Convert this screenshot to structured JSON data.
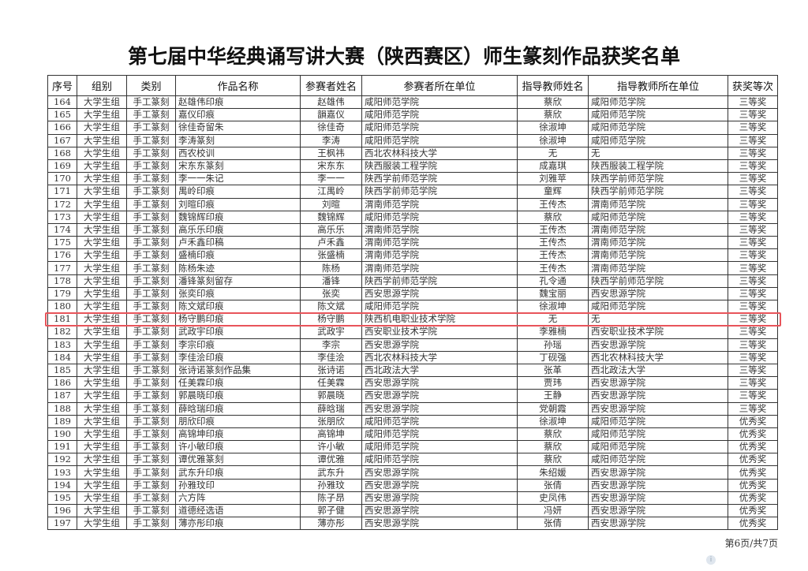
{
  "title": "第七届中华经典诵写讲大赛（陕西赛区）师生篆刻作品获奖名单",
  "columns": [
    "序号",
    "组别",
    "类别",
    "作品名称",
    "参赛者姓名",
    "参赛者所在单位",
    "指导教师姓名",
    "指导教师所在单位",
    "获奖等次"
  ],
  "rows": [
    [
      "164",
      "大学生组",
      "手工篆刻",
      "赵雄伟印痕",
      "赵雄伟",
      "咸阳师范学院",
      "蔡欣",
      "咸阳师范学院",
      "三等奖"
    ],
    [
      "165",
      "大学生组",
      "手工篆刻",
      "嘉仪印痕",
      "韻嘉仪",
      "咸阳师范学院",
      "蔡欣",
      "咸阳师范学院",
      "三等奖"
    ],
    [
      "166",
      "大学生组",
      "手工篆刻",
      "徐佳奇留朱",
      "徐佳奇",
      "咸阳师范学院",
      "徐淑坤",
      "咸阳师范学院",
      "三等奖"
    ],
    [
      "167",
      "大学生组",
      "手工篆刻",
      "李涛篆刻",
      "李涛",
      "咸阳师范学院",
      "徐淑坤",
      "咸阳师范学院",
      "三等奖"
    ],
    [
      "168",
      "大学生组",
      "手工篆刻",
      "西农校训",
      "王枫祎",
      "西北农林科技大学",
      "无",
      "无",
      "三等奖"
    ],
    [
      "169",
      "大学生组",
      "手工篆刻",
      "宋东东篆刻",
      "宋东东",
      "陕西服装工程学院",
      "成嘉琪",
      "陕西服装工程学院",
      "三等奖"
    ],
    [
      "170",
      "大学生组",
      "手工篆刻",
      "李一一朱记",
      "李一一",
      "陕西学前师范学院",
      "刘雅苹",
      "陕西学前师范学院",
      "三等奖"
    ],
    [
      "171",
      "大学生组",
      "手工篆刻",
      "禺岭印痕",
      "江禺岭",
      "陕西学前师范学院",
      "童辉",
      "陕西学前师范学院",
      "三等奖"
    ],
    [
      "172",
      "大学生组",
      "手工篆刻",
      "刘暄印痕",
      "刘暄",
      "渭南师范学院",
      "王传杰",
      "渭南师范学院",
      "三等奖"
    ],
    [
      "173",
      "大学生组",
      "手工篆刻",
      "魏锦辉印痕",
      "魏锦辉",
      "咸阳师范学院",
      "蔡欣",
      "咸阳师范学院",
      "三等奖"
    ],
    [
      "174",
      "大学生组",
      "手工篆刻",
      "高乐乐印痕",
      "高乐乐",
      "渭南师范学院",
      "王传杰",
      "渭南师范学院",
      "三等奖"
    ],
    [
      "175",
      "大学生组",
      "手工篆刻",
      "卢禾鑫印稿",
      "卢禾鑫",
      "渭南师范学院",
      "王传杰",
      "渭南师范学院",
      "三等奖"
    ],
    [
      "176",
      "大学生组",
      "手工篆刻",
      "盛楠印痕",
      "张盛楠",
      "渭南师范学院",
      "王传杰",
      "渭南师范学院",
      "三等奖"
    ],
    [
      "177",
      "大学生组",
      "手工篆刻",
      "陈杨朱迹",
      "陈杨",
      "渭南师范学院",
      "王传杰",
      "渭南师范学院",
      "三等奖"
    ],
    [
      "178",
      "大学生组",
      "手工篆刻",
      "潘锋篆刻留存",
      "潘锋",
      "陕西学前师范学院",
      "孔令通",
      "陕西学前师范学院",
      "三等奖"
    ],
    [
      "179",
      "大学生组",
      "手工篆刻",
      "张奕印痕",
      "张奕",
      "西安思源学院",
      "魏宝丽",
      "西安思源学院",
      "三等奖"
    ],
    [
      "180",
      "大学生组",
      "手工篆刻",
      "陈文斌印痕",
      "陈文斌",
      "咸阳师范学院",
      "徐淑坤",
      "咸阳师范学院",
      "三等奖"
    ],
    [
      "181",
      "大学生组",
      "手工篆刻",
      "杨守鹏印痕",
      "杨守鹏",
      "陕西机电职业技术学院",
      "无",
      "无",
      "三等奖"
    ],
    [
      "182",
      "大学生组",
      "手工篆刻",
      "武政宇印痕",
      "武政宇",
      "西安职业技术学院",
      "李雅楠",
      "西安职业技术学院",
      "三等奖"
    ],
    [
      "183",
      "大学生组",
      "手工篆刻",
      "李宗印痕",
      "李宗",
      "西安思源学院",
      "孙瑶",
      "西安思源学院",
      "三等奖"
    ],
    [
      "184",
      "大学生组",
      "手工篆刻",
      "李佳浍印痕",
      "李佳浍",
      "西北农林科技大学",
      "丁砚强",
      "西北农林科技大学",
      "三等奖"
    ],
    [
      "185",
      "大学生组",
      "手工篆刻",
      "张诗诺篆刻作品集",
      "张诗诺",
      "西北政法大学",
      "张革",
      "西北政法大学",
      "三等奖"
    ],
    [
      "186",
      "大学生组",
      "手工篆刻",
      "任美霖印痕",
      "任美霖",
      "西安思源学院",
      "贾玮",
      "西安思源学院",
      "三等奖"
    ],
    [
      "187",
      "大学生组",
      "手工篆刻",
      "郭晨晓印痕",
      "郭晨晓",
      "西安思源学院",
      "王静",
      "西安思源学院",
      "三等奖"
    ],
    [
      "188",
      "大学生组",
      "手工篆刻",
      "薛晗瑞印痕",
      "薛晗瑞",
      "西安思源学院",
      "党朝霞",
      "西安思源学院",
      "三等奖"
    ],
    [
      "189",
      "大学生组",
      "手工篆刻",
      "朋欣印痕",
      "张朋欣",
      "咸阳师范学院",
      "徐淑坤",
      "咸阳师范学院",
      "优秀奖"
    ],
    [
      "190",
      "大学生组",
      "手工篆刻",
      "高锦坤印痕",
      "高锦坤",
      "咸阳师范学院",
      "蔡欣",
      "咸阳师范学院",
      "优秀奖"
    ],
    [
      "191",
      "大学生组",
      "手工篆刻",
      "许小敏印痕",
      "许小敏",
      "咸阳师范学院",
      "蔡欣",
      "咸阳师范学院",
      "优秀奖"
    ],
    [
      "192",
      "大学生组",
      "手工篆刻",
      "谭优雅篆刻",
      "谭优雅",
      "咸阳师范学院",
      "蔡欣",
      "咸阳师范学院",
      "优秀奖"
    ],
    [
      "193",
      "大学生组",
      "手工篆刻",
      "武东升印痕",
      "武东升",
      "西安思源学院",
      "朱绍媛",
      "西安思源学院",
      "优秀奖"
    ],
    [
      "194",
      "大学生组",
      "手工篆刻",
      "孙雅玟印",
      "孙雅玟",
      "西安思源学院",
      "张倩",
      "西安思源学院",
      "优秀奖"
    ],
    [
      "195",
      "大学生组",
      "手工篆刻",
      "六方阵",
      "陈子昂",
      "西安思源学院",
      "史凤伟",
      "西安思源学院",
      "优秀奖"
    ],
    [
      "196",
      "大学生组",
      "手工篆刻",
      "道德经选语",
      "郭子健",
      "西安思源学院",
      "冯妍",
      "西安思源学院",
      "优秀奖"
    ],
    [
      "197",
      "大学生组",
      "手工篆刻",
      "薄亦彤印痕",
      "薄亦彤",
      "西安思源学院",
      "张倩",
      "西安思源学院",
      "优秀奖"
    ]
  ],
  "highlighted_row": "181",
  "highlight_color": "#e8545a",
  "footer": {
    "page_label": "第6页/共7页"
  },
  "icons": {
    "corner": "info-icon"
  }
}
